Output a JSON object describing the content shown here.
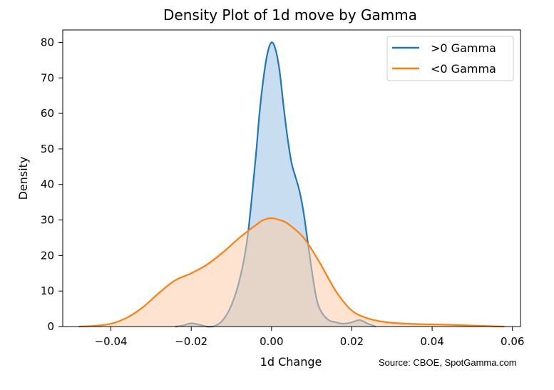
{
  "chart_data": {
    "type": "area",
    "title": "Density Plot of 1d move by Gamma",
    "xlabel": "1d Change",
    "ylabel": "Density",
    "xlim": [
      -0.052,
      0.062
    ],
    "ylim": [
      0,
      83.5
    ],
    "xticks": [
      -0.04,
      -0.02,
      0.0,
      0.02,
      0.04,
      0.06
    ],
    "xtick_labels": [
      "−0.04",
      "−0.02",
      "0.00",
      "0.02",
      "0.04",
      "0.06"
    ],
    "yticks": [
      0,
      10,
      20,
      30,
      40,
      50,
      60,
      70,
      80
    ],
    "ytick_labels": [
      "0",
      "10",
      "20",
      "30",
      "40",
      "50",
      "60",
      "70",
      "80"
    ],
    "grid": false,
    "legend_position": "top-right",
    "series": [
      {
        "name": ">0 Gamma",
        "color": "#1f77b4",
        "fill_color": "#a6c8e6",
        "x": [
          -0.024,
          -0.022,
          -0.02,
          -0.018,
          -0.016,
          -0.014,
          -0.012,
          -0.01,
          -0.008,
          -0.006,
          -0.004,
          -0.003,
          -0.002,
          -0.001,
          0.0,
          0.001,
          0.002,
          0.003,
          0.004,
          0.005,
          0.006,
          0.007,
          0.008,
          0.009,
          0.01,
          0.011,
          0.012,
          0.014,
          0.016,
          0.018,
          0.02,
          0.022,
          0.024,
          0.026
        ],
        "y": [
          0,
          0.3,
          0.9,
          0.5,
          0,
          0.2,
          2,
          6,
          13,
          25,
          47,
          60,
          70,
          77,
          80,
          78,
          72,
          62,
          53,
          46,
          42,
          38,
          32,
          24,
          16,
          9,
          5,
          2,
          1.2,
          0.8,
          1.2,
          1.8,
          0.8,
          0
        ]
      },
      {
        "name": "<0 Gamma",
        "color": "#ff7f0e",
        "fill_color": "#fdcda9",
        "x": [
          -0.048,
          -0.044,
          -0.04,
          -0.036,
          -0.032,
          -0.028,
          -0.024,
          -0.02,
          -0.016,
          -0.012,
          -0.008,
          -0.004,
          -0.002,
          0.0,
          0.002,
          0.004,
          0.008,
          0.012,
          0.016,
          0.02,
          0.024,
          0.028,
          0.032,
          0.036,
          0.04,
          0.044,
          0.048,
          0.052,
          0.056,
          0.058
        ],
        "y": [
          0,
          0.2,
          0.8,
          2.5,
          5.5,
          9.5,
          13,
          15,
          17.5,
          21,
          25,
          28.5,
          30,
          30.5,
          30,
          29,
          25,
          18,
          10,
          4.5,
          2.3,
          1.3,
          0.9,
          0.7,
          0.6,
          0.5,
          0.35,
          0.2,
          0.05,
          0
        ]
      }
    ]
  },
  "source_note": "Source: CBOE, SpotGamma.com"
}
